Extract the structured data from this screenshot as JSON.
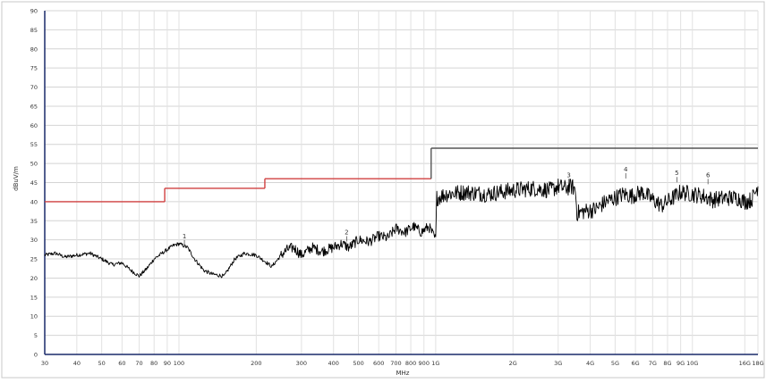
{
  "chart_data": {
    "type": "line",
    "title": "",
    "xlabel": "MHz",
    "ylabel": "dBuV/m",
    "x_scale": "log",
    "xlim": [
      30,
      18000
    ],
    "ylim": [
      0,
      90
    ],
    "grid": true,
    "y_ticks": [
      0,
      5,
      10,
      15,
      20,
      25,
      30,
      35,
      40,
      45,
      50,
      55,
      60,
      65,
      70,
      75,
      80,
      85,
      90
    ],
    "x_ticks": [
      {
        "value": 30,
        "label": "30"
      },
      {
        "value": 40,
        "label": "40"
      },
      {
        "value": 50,
        "label": "50"
      },
      {
        "value": 60,
        "label": "60"
      },
      {
        "value": 70,
        "label": "70"
      },
      {
        "value": 80,
        "label": "80"
      },
      {
        "value": 90,
        "label": "90"
      },
      {
        "value": 100,
        "label": "100"
      },
      {
        "value": 200,
        "label": "200"
      },
      {
        "value": 300,
        "label": "300"
      },
      {
        "value": 400,
        "label": "400"
      },
      {
        "value": 500,
        "label": "500"
      },
      {
        "value": 600,
        "label": "600"
      },
      {
        "value": 700,
        "label": "700"
      },
      {
        "value": 800,
        "label": "800"
      },
      {
        "value": 900,
        "label": "900"
      },
      {
        "value": 1000,
        "label": "1G"
      },
      {
        "value": 2000,
        "label": "2G"
      },
      {
        "value": 3000,
        "label": "3G"
      },
      {
        "value": 4000,
        "label": "4G"
      },
      {
        "value": 5000,
        "label": "5G"
      },
      {
        "value": 6000,
        "label": "6G"
      },
      {
        "value": 7000,
        "label": "7G"
      },
      {
        "value": 8000,
        "label": "8G"
      },
      {
        "value": 9000,
        "label": "9G"
      },
      {
        "value": 10000,
        "label": "10G"
      },
      {
        "value": 16000,
        "label": "16G"
      },
      {
        "value": 18000,
        "label": "18G"
      }
    ],
    "limit_line": {
      "color": "#d04040",
      "color_above_1g": "#555555",
      "points": [
        [
          30,
          40
        ],
        [
          88,
          40
        ],
        [
          88,
          43.5
        ],
        [
          216,
          43.5
        ],
        [
          216,
          46
        ],
        [
          960,
          46
        ],
        [
          960,
          54
        ],
        [
          18000,
          54
        ]
      ]
    },
    "series": [
      {
        "color": "#000000",
        "x": [
          30,
          33,
          36,
          40,
          45,
          50,
          55,
          60,
          65,
          70,
          75,
          80,
          88,
          95,
          100,
          108,
          115,
          125,
          135,
          150,
          165,
          180,
          200,
          215,
          230,
          250,
          265,
          280,
          300,
          330,
          360,
          400,
          430,
          460,
          500,
          550,
          600,
          650,
          700,
          760,
          820,
          880,
          940,
          1000,
          1010,
          1100,
          1300,
          1600,
          2000,
          2400,
          2800,
          3000,
          3200,
          3400,
          3500,
          3550,
          3800,
          4200,
          4600,
          5000,
          5400,
          5800,
          6400,
          7000,
          7600,
          8200,
          9000,
          10000,
          11000,
          12000,
          13500,
          15000,
          16000,
          17000,
          18000
        ],
        "y": [
          26,
          26.5,
          25.5,
          26,
          26.5,
          25,
          23.5,
          24,
          22,
          20.5,
          22.5,
          25,
          27,
          28.5,
          29,
          28,
          25,
          22,
          21,
          20.5,
          25,
          26.5,
          26,
          24.5,
          23,
          26,
          27.5,
          28,
          26,
          28,
          27,
          28,
          29,
          28,
          30,
          29.5,
          31,
          30.5,
          33,
          32,
          33.5,
          32,
          33.5,
          30,
          41,
          42,
          42.5,
          42,
          43,
          43.5,
          43,
          44,
          43.5,
          44,
          43,
          37,
          37.5,
          38,
          40,
          41,
          42,
          41.5,
          42.5,
          40.5,
          39,
          40.5,
          42.5,
          42,
          41.5,
          40.5,
          41,
          41,
          40,
          40.5,
          44
        ]
      }
    ],
    "annotations": [
      {
        "label": "1",
        "x": 105,
        "y": 29.5
      },
      {
        "label": "2",
        "x": 450,
        "y": 30.5
      },
      {
        "label": "3",
        "x": 3300,
        "y": 45.5
      },
      {
        "label": "4",
        "x": 5500,
        "y": 47
      },
      {
        "label": "5",
        "x": 8700,
        "y": 46
      },
      {
        "label": "6",
        "x": 11500,
        "y": 45.5
      }
    ]
  }
}
